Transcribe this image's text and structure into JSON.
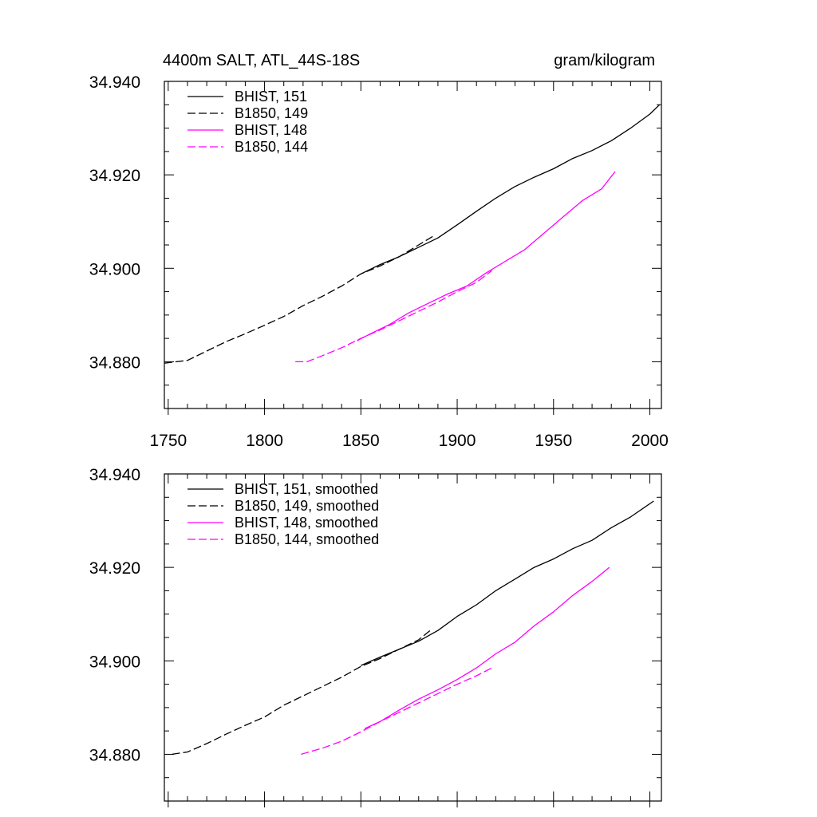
{
  "chart_data": [
    {
      "type": "line",
      "title": "4400m SALT, ATL_44S-18S",
      "units": "gram/kilogram",
      "xlabel": "",
      "ylabel": "",
      "xlim": [
        1748,
        2006
      ],
      "ylim": [
        34.87,
        34.94
      ],
      "xticks": [
        1750,
        1800,
        1850,
        1900,
        1950,
        2000
      ],
      "xtick_labels": [
        "1750",
        "1800",
        "1850",
        "1900",
        "1950",
        "2000"
      ],
      "yticks": [
        34.88,
        34.9,
        34.92,
        34.94
      ],
      "ytick_labels": [
        "34.880",
        "34.900",
        "34.920",
        "34.940"
      ],
      "show_xtick_labels": true,
      "legend": "top-left",
      "series": [
        {
          "name": "BHIST, 151",
          "color": "#000000",
          "dash": "solid",
          "x": [
            1850,
            1860,
            1870,
            1880,
            1890,
            1900,
            1910,
            1920,
            1930,
            1940,
            1950,
            1960,
            1970,
            1980,
            1990,
            2000,
            2005
          ],
          "y": [
            34.8988,
            34.9008,
            34.9025,
            34.9045,
            34.9065,
            34.9093,
            34.9122,
            34.915,
            34.9175,
            34.9195,
            34.9213,
            34.9235,
            34.9252,
            34.9273,
            34.93,
            34.933,
            34.935
          ]
        },
        {
          "name": "B1850, 149",
          "color": "#000000",
          "dash": "dashed",
          "x": [
            1748,
            1760,
            1770,
            1780,
            1790,
            1800,
            1810,
            1820,
            1830,
            1840,
            1850,
            1860,
            1870,
            1880,
            1888
          ],
          "y": [
            34.8797,
            34.8803,
            34.8823,
            34.8843,
            34.886,
            34.8878,
            34.8897,
            34.892,
            34.894,
            34.8962,
            34.8988,
            34.9005,
            34.9025,
            34.905,
            34.907
          ]
        },
        {
          "name": "BHIST, 148",
          "color": "#ff00ff",
          "dash": "solid",
          "x": [
            1848,
            1855,
            1865,
            1875,
            1885,
            1895,
            1905,
            1915,
            1925,
            1935,
            1945,
            1955,
            1965,
            1975,
            1982
          ],
          "y": [
            34.8845,
            34.886,
            34.888,
            34.8905,
            34.8925,
            34.8945,
            34.8962,
            34.899,
            34.9015,
            34.904,
            34.9075,
            34.911,
            34.9145,
            34.917,
            34.9207
          ]
        },
        {
          "name": "B1850, 144",
          "color": "#ff00ff",
          "dash": "dashed",
          "x": [
            1816,
            1822,
            1830,
            1840,
            1850,
            1860,
            1870,
            1880,
            1890,
            1900,
            1910,
            1918
          ],
          "y": [
            34.88,
            34.88,
            34.8813,
            34.883,
            34.885,
            34.8868,
            34.8888,
            34.8908,
            34.8928,
            34.895,
            34.897,
            34.8995
          ]
        }
      ]
    },
    {
      "type": "line",
      "title": "",
      "xlabel": "",
      "ylabel": "",
      "xlim": [
        1748,
        2006
      ],
      "ylim": [
        34.87,
        34.94
      ],
      "xticks": [
        1750,
        1800,
        1850,
        1900,
        1950,
        2000
      ],
      "xtick_labels": [],
      "yticks": [
        34.88,
        34.9,
        34.92,
        34.94
      ],
      "ytick_labels": [
        "34.880",
        "34.900",
        "34.920",
        "34.940"
      ],
      "show_xtick_labels": false,
      "legend": "top-left",
      "series": [
        {
          "name": "BHIST, 151, smoothed",
          "color": "#000000",
          "dash": "solid",
          "x": [
            1850,
            1860,
            1870,
            1880,
            1890,
            1900,
            1910,
            1920,
            1930,
            1940,
            1950,
            1960,
            1970,
            1980,
            1990,
            2002
          ],
          "y": [
            34.899,
            34.9008,
            34.9025,
            34.9042,
            34.9065,
            34.9095,
            34.912,
            34.915,
            34.9175,
            34.92,
            34.9218,
            34.924,
            34.9258,
            34.9285,
            34.9308,
            34.9342
          ]
        },
        {
          "name": "B1850, 149, smoothed",
          "color": "#000000",
          "dash": "dashed",
          "x": [
            1752,
            1760,
            1770,
            1780,
            1790,
            1800,
            1810,
            1820,
            1830,
            1840,
            1850,
            1860,
            1870,
            1880,
            1886
          ],
          "y": [
            34.88,
            34.8805,
            34.8823,
            34.8843,
            34.8862,
            34.888,
            34.8905,
            34.8925,
            34.8945,
            34.8965,
            34.8988,
            34.9005,
            34.9025,
            34.9045,
            34.9065
          ]
        },
        {
          "name": "BHIST, 148, smoothed",
          "color": "#ff00ff",
          "dash": "solid",
          "x": [
            1852,
            1860,
            1870,
            1880,
            1890,
            1900,
            1910,
            1920,
            1930,
            1940,
            1950,
            1960,
            1970,
            1979
          ],
          "y": [
            34.8855,
            34.887,
            34.8895,
            34.8918,
            34.8938,
            34.896,
            34.8985,
            34.9015,
            34.904,
            34.9075,
            34.9105,
            34.914,
            34.917,
            34.92
          ]
        },
        {
          "name": "B1850, 144, smoothed",
          "color": "#ff00ff",
          "dash": "dashed",
          "x": [
            1819,
            1830,
            1840,
            1850,
            1860,
            1870,
            1880,
            1890,
            1900,
            1910,
            1918
          ],
          "y": [
            34.88,
            34.8813,
            34.8828,
            34.8848,
            34.887,
            34.889,
            34.891,
            34.893,
            34.895,
            34.8968,
            34.8985
          ]
        }
      ]
    }
  ]
}
